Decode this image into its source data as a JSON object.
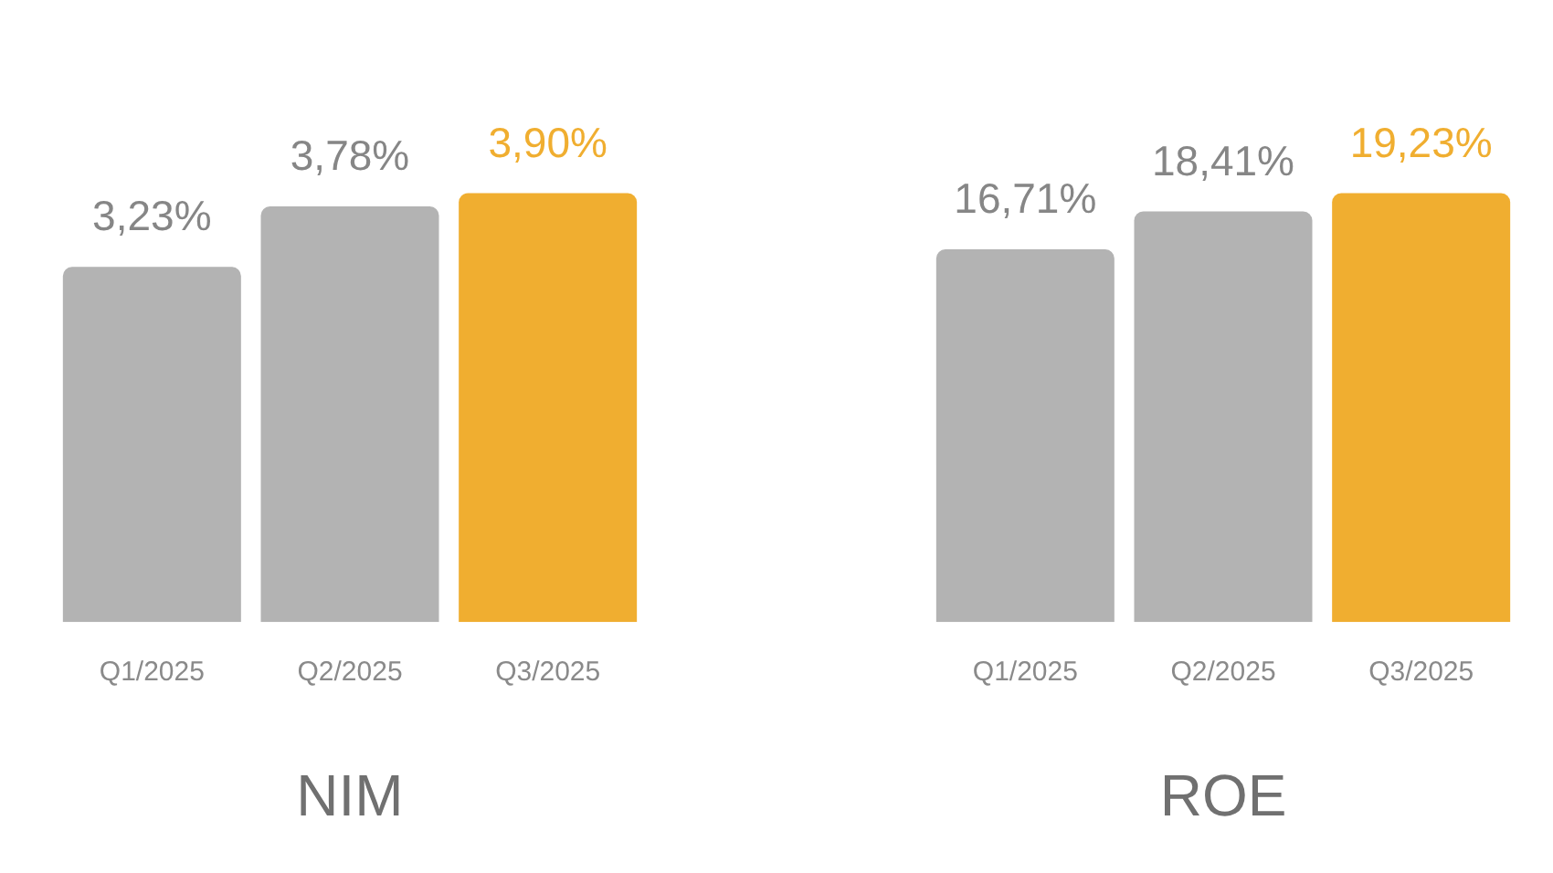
{
  "chart_data": [
    {
      "type": "bar",
      "title": "NIM",
      "categories": [
        "Q1/2025",
        "Q2/2025",
        "Q3/2025"
      ],
      "values": [
        3.23,
        3.78,
        3.9
      ],
      "colors": [
        "#b3b3b3",
        "#b3b3b3",
        "#f0ae30"
      ],
      "value_labels": [
        "3,23%",
        "3,78%",
        "3,90%"
      ],
      "tick_labels": "x"
    },
    {
      "type": "bar",
      "title": "ROE",
      "categories": [
        "Q1/2025",
        "Q2/2025",
        "Q3/2025"
      ],
      "values": [
        16.71,
        18.41,
        19.23
      ],
      "colors": [
        "#b3b3b3",
        "#b3b3b3",
        "#f0ae30"
      ],
      "value_labels": [
        "16,71%",
        "18,41%",
        "19,23%"
      ],
      "tick_labels": "x"
    }
  ]
}
